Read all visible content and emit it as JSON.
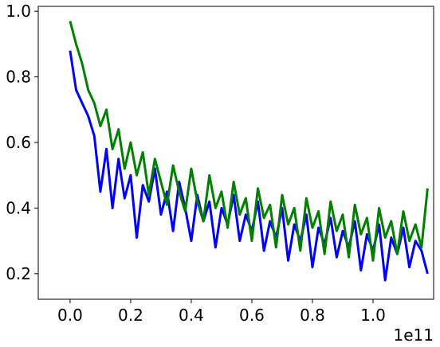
{
  "chart_data": {
    "type": "line",
    "x_offset_label": "1e11",
    "xlim": [
      -0.105,
      1.2
    ],
    "ylim": [
      0.122,
      1.015
    ],
    "xticks": [
      {
        "value": 0,
        "label": "0.0"
      },
      0.2,
      0.4,
      0.6,
      0.8,
      {
        "value": 1,
        "label": "1.0"
      }
    ],
    "yticks": [
      0.2,
      0.4,
      0.6,
      0.8,
      {
        "value": 1,
        "label": "1.0"
      }
    ],
    "grid": false,
    "x": [
      0,
      0.02,
      0.04,
      0.06,
      0.08,
      0.1,
      0.12,
      0.14,
      0.16,
      0.18,
      0.2,
      0.22,
      0.24,
      0.26,
      0.28,
      0.3,
      0.32,
      0.34,
      0.36,
      0.38,
      0.4,
      0.42,
      0.44,
      0.46,
      0.48,
      0.5,
      0.52,
      0.54,
      0.56,
      0.58,
      0.6,
      0.62,
      0.64,
      0.66,
      0.68,
      0.7,
      0.72,
      0.74,
      0.76,
      0.78,
      0.8,
      0.82,
      0.84,
      0.86,
      0.88,
      0.9,
      0.92,
      0.94,
      0.96,
      0.98,
      1.0,
      1.02,
      1.04,
      1.06,
      1.08,
      1.1,
      1.12,
      1.14,
      1.16,
      1.18
    ],
    "series": [
      {
        "color": "#0000ff",
        "values": [
          0.88,
          0.76,
          0.72,
          0.68,
          0.62,
          0.45,
          0.58,
          0.4,
          0.55,
          0.43,
          0.5,
          0.31,
          0.47,
          0.42,
          0.52,
          0.38,
          0.45,
          0.33,
          0.48,
          0.4,
          0.3,
          0.44,
          0.36,
          0.42,
          0.28,
          0.4,
          0.35,
          0.44,
          0.3,
          0.38,
          0.33,
          0.42,
          0.27,
          0.36,
          0.31,
          0.4,
          0.24,
          0.35,
          0.3,
          0.38,
          0.22,
          0.34,
          0.29,
          0.37,
          0.25,
          0.33,
          0.28,
          0.36,
          0.21,
          0.32,
          0.27,
          0.35,
          0.18,
          0.31,
          0.26,
          0.34,
          0.22,
          0.3,
          0.27,
          0.2
        ]
      },
      {
        "color": "#008000",
        "values": [
          0.97,
          0.9,
          0.84,
          0.76,
          0.72,
          0.65,
          0.7,
          0.58,
          0.64,
          0.52,
          0.6,
          0.5,
          0.57,
          0.44,
          0.55,
          0.48,
          0.41,
          0.53,
          0.45,
          0.39,
          0.52,
          0.42,
          0.36,
          0.5,
          0.4,
          0.45,
          0.34,
          0.48,
          0.38,
          0.43,
          0.3,
          0.46,
          0.37,
          0.41,
          0.28,
          0.44,
          0.35,
          0.4,
          0.27,
          0.43,
          0.34,
          0.39,
          0.26,
          0.42,
          0.33,
          0.38,
          0.25,
          0.41,
          0.32,
          0.37,
          0.24,
          0.4,
          0.31,
          0.36,
          0.26,
          0.39,
          0.3,
          0.35,
          0.28,
          0.46
        ]
      }
    ]
  }
}
